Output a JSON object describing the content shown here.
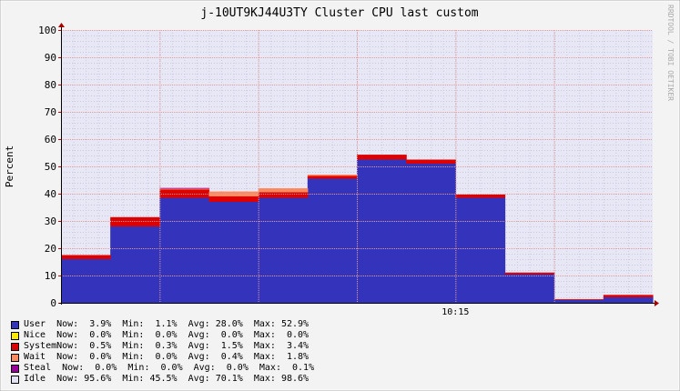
{
  "chart_data": {
    "type": "area",
    "title": "j-10UT9KJ44U3TY Cluster CPU last custom",
    "ylabel": "Percent",
    "watermark": "RRDTOOL / TOBI OETIKER",
    "ylim": [
      0,
      100
    ],
    "yticks": [
      0,
      10,
      20,
      30,
      40,
      50,
      60,
      70,
      80,
      90,
      100
    ],
    "xticks": [
      {
        "label": "10:15",
        "index": 8
      }
    ],
    "grid": true,
    "stacked": true,
    "x_count": 12,
    "series": [
      {
        "name": "User",
        "color": "#3333bb",
        "values": [
          16,
          28,
          38.5,
          37,
          38.5,
          45.5,
          52.5,
          51,
          38.5,
          10.5,
          1,
          2
        ]
      },
      {
        "name": "Nice",
        "color": "#ffea00",
        "values": [
          0,
          0,
          0,
          0,
          0,
          0,
          0,
          0,
          0,
          0,
          0,
          0
        ]
      },
      {
        "name": "System",
        "color": "#dd0000",
        "values": [
          1.5,
          3.4,
          3,
          2,
          2,
          1,
          1.8,
          1.5,
          1.2,
          0.6,
          0.3,
          0.9
        ]
      },
      {
        "name": "Wait",
        "color": "#ff8a60",
        "values": [
          0,
          0,
          0.5,
          1.8,
          1.5,
          0.5,
          0,
          0,
          0,
          0,
          0,
          0
        ]
      },
      {
        "name": "Steal",
        "color": "#990099",
        "values": [
          0,
          0,
          0.1,
          0,
          0,
          0,
          0,
          0,
          0,
          0,
          0,
          0
        ]
      },
      {
        "name": "Idle",
        "color": "#e2e2f2",
        "values": [
          82.5,
          68.6,
          57.9,
          59.2,
          58,
          53,
          45.7,
          47.5,
          60.3,
          88.9,
          98.6,
          97.1
        ]
      }
    ],
    "legend": [
      {
        "text": "User  Now:  3.9%  Min:  1.1%  Avg: 28.0%  Max: 52.9%",
        "color": "#3333bb"
      },
      {
        "text": "Nice  Now:  0.0%  Min:  0.0%  Avg:  0.0%  Max:  0.0%",
        "color": "#ffea00"
      },
      {
        "text": "SystemNow:  0.5%  Min:  0.3%  Avg:  1.5%  Max:  3.4%",
        "color": "#dd0000"
      },
      {
        "text": "Wait  Now:  0.0%  Min:  0.0%  Avg:  0.4%  Max:  1.8%",
        "color": "#ff8a60"
      },
      {
        "text": "Steal  Now:  0.0%  Min:  0.0%  Avg:  0.0%  Max:  0.1%",
        "color": "#990099"
      },
      {
        "text": "Idle  Now: 95.6%  Min: 45.5%  Avg: 70.1%  Max: 98.6%",
        "color": "#e2e2f2"
      }
    ]
  }
}
